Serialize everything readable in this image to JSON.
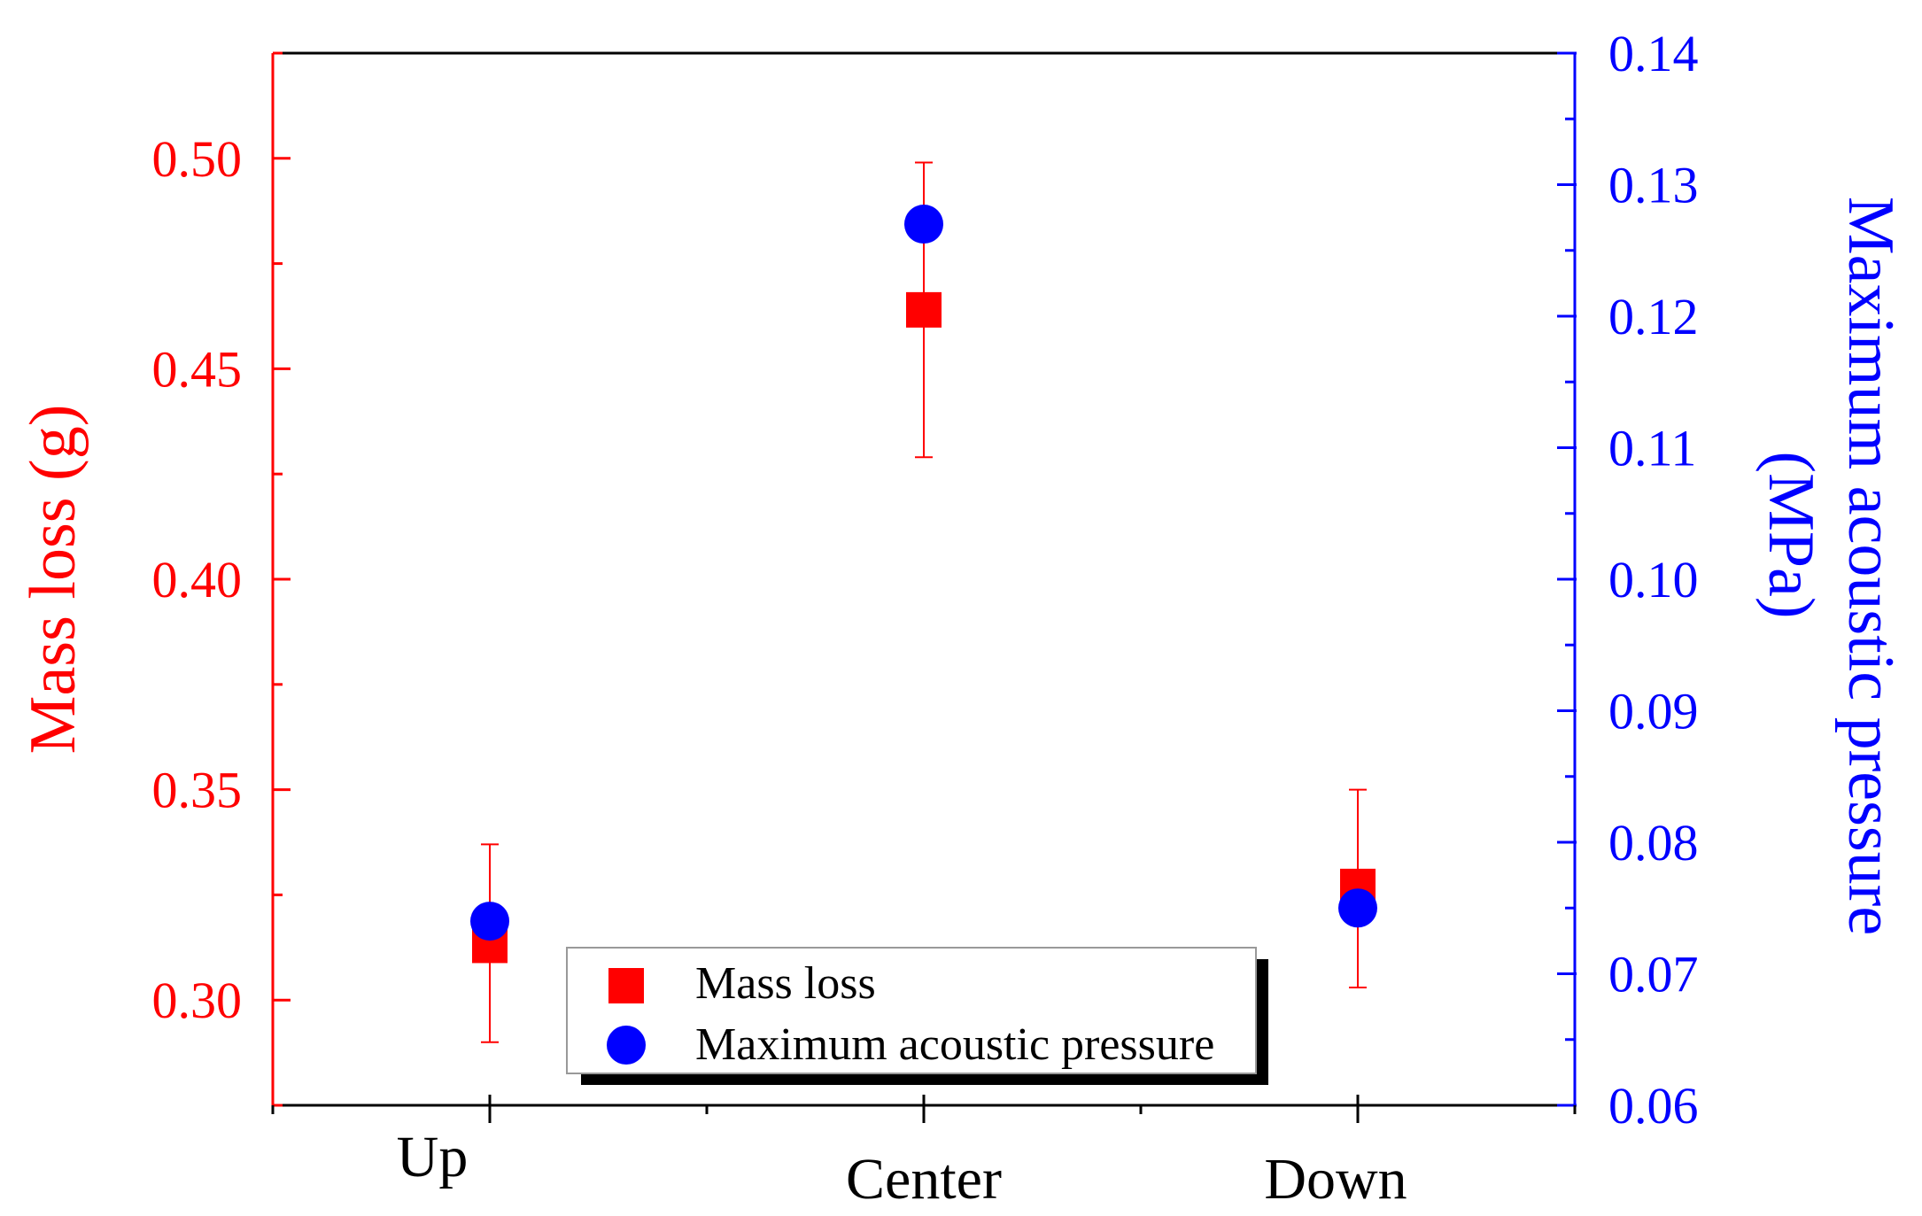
{
  "chart_data": {
    "type": "scatter",
    "categories": [
      "Up",
      "Center",
      "Down"
    ],
    "series": [
      {
        "name": "Mass loss",
        "axis": "left",
        "marker": "square",
        "color": "#ff0000",
        "values": [
          0.313,
          0.464,
          0.327
        ],
        "error_low": [
          0.29,
          0.429,
          0.303
        ],
        "error_high": [
          0.337,
          0.499,
          0.35
        ]
      },
      {
        "name": "Maximum acoustic pressure",
        "axis": "right",
        "marker": "circle",
        "color": "#0000ff",
        "values": [
          0.074,
          0.127,
          0.075
        ]
      }
    ],
    "left_axis": {
      "label": "Mass loss (g)",
      "color": "#ff0000",
      "ylim": [
        0.275,
        0.525
      ],
      "ticks": [
        "0.30",
        "0.35",
        "0.40",
        "0.45",
        "0.50"
      ]
    },
    "right_axis": {
      "label_line1": "Maximum acoustic pressure",
      "label_line2": "(MPa)",
      "color": "#0000ff",
      "ylim": [
        0.06,
        0.14
      ],
      "ticks": [
        "0.06",
        "0.07",
        "0.08",
        "0.09",
        "0.10",
        "0.11",
        "0.12",
        "0.13",
        "0.14"
      ]
    },
    "legend": {
      "position": "bottom-center",
      "entries": [
        "Mass loss",
        "Maximum acoustic pressure"
      ]
    }
  }
}
